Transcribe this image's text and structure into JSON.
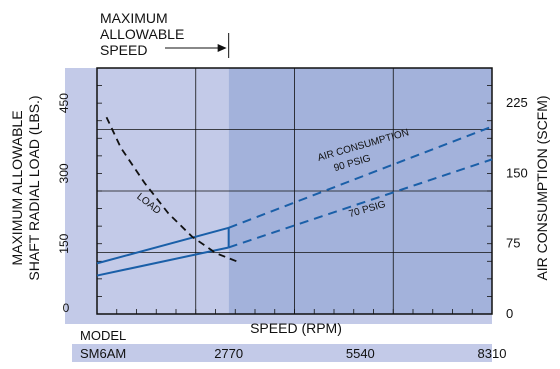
{
  "chart_data": {
    "type": "line",
    "annotation": {
      "line1": "MAXIMUM",
      "line2": "ALLOWABLE",
      "line3": "SPEED",
      "x": 2770
    },
    "xlabel": "SPEED (RPM)",
    "ylabel_left_line1": "MAXIMUM ALLOWABLE",
    "ylabel_left_line2": "SHAFT RADIAL LOAD (LBS.)",
    "ylabel_right": "AIR CONSUMPTION (SCFM)",
    "xlim": [
      0,
      8310
    ],
    "ylim_left": [
      0,
      525
    ],
    "ylim_right": [
      0,
      262.5
    ],
    "left_ticks": [
      "0",
      "150",
      "300",
      "450"
    ],
    "left_tick_values": [
      0,
      150,
      300,
      450
    ],
    "right_ticks": [
      "0",
      "75",
      "150",
      "225"
    ],
    "right_tick_values": [
      0,
      75,
      150,
      225
    ],
    "model_row": {
      "header": "MODEL",
      "model": "SM6AM",
      "speeds": [
        "2770",
        "5540",
        "8310"
      ],
      "speed_values": [
        2770,
        5540,
        8310
      ]
    },
    "grid": true,
    "series": [
      {
        "name": "90 PSIG",
        "axis": "right",
        "x": [
          0,
          2770,
          8310
        ],
        "y": [
          54,
          92,
          200
        ],
        "solid_until": 2770
      },
      {
        "name": "70 PSIG",
        "axis": "right",
        "x": [
          0,
          2770,
          8310
        ],
        "y": [
          41,
          71,
          165
        ],
        "solid_until": 2770
      },
      {
        "name": "LOAD",
        "axis": "left",
        "dashed": true,
        "x": [
          200,
          500,
          1000,
          1500,
          2000,
          2500,
          3000
        ],
        "y": [
          420,
          355,
          280,
          215,
          165,
          130,
          110
        ]
      }
    ],
    "labels": {
      "air_consumption": "AIR CONSUMPTION",
      "psig90": "90 PSIG",
      "psig70": "70 PSIG",
      "load": "LOAD"
    },
    "colors": {
      "region_low": "#c3cae8",
      "region_high": "#a3b2db",
      "axis_band": "#c3cae8",
      "line": "#1a5fa8",
      "load": "#111111",
      "grid": "#111111"
    }
  }
}
